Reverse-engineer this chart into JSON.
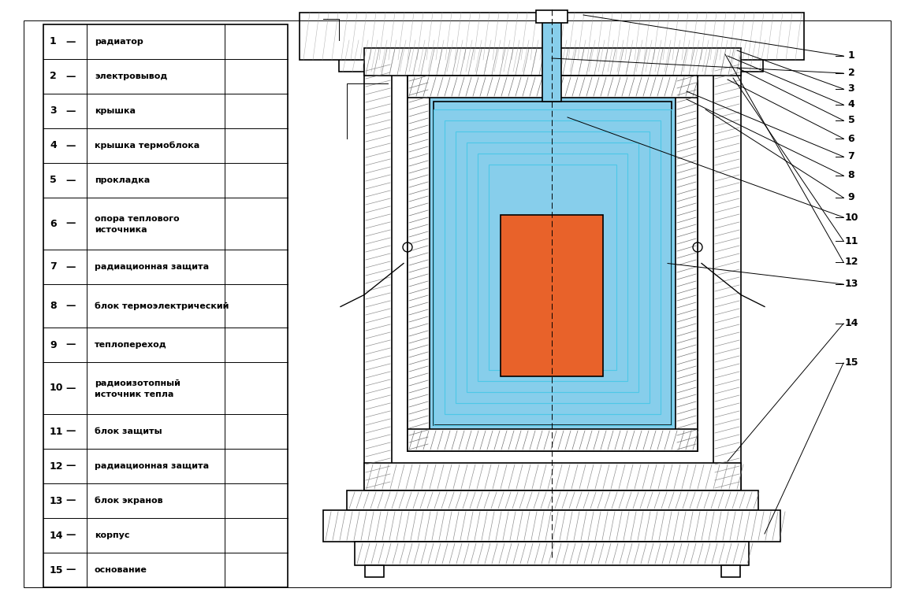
{
  "background_color": "#ffffff",
  "legend_items": [
    {
      "num": "1",
      "dash": "—",
      "text": "радиатор"
    },
    {
      "num": "2",
      "dash": "—",
      "text": "электровывод"
    },
    {
      "num": "3",
      "dash": "—",
      "text": "крышка"
    },
    {
      "num": "4",
      "dash": "—",
      "text": "крышка термоблока"
    },
    {
      "num": "5",
      "dash": "—",
      "text": "прокладка"
    },
    {
      "num": "6",
      "dash": "—",
      "text": "опора теплового\nисточника"
    },
    {
      "num": "7",
      "dash": "—",
      "text": "радиационная защита"
    },
    {
      "num": "8",
      "dash": "—",
      "text": "блок термоэлектрический"
    },
    {
      "num": "9",
      "dash": "—",
      "text": "теплопереход"
    },
    {
      "num": "10",
      "dash": "—",
      "text": "радиоизотопный\nисточник тепла"
    },
    {
      "num": "11",
      "dash": "—",
      "text": "блок защиты"
    },
    {
      "num": "12",
      "dash": "—",
      "text": "радиационная защита"
    },
    {
      "num": "13",
      "dash": "—",
      "text": "блок экранов"
    },
    {
      "num": "14",
      "dash": "—",
      "text": "корпус"
    },
    {
      "num": "15",
      "dash": "—",
      "text": "основание"
    }
  ],
  "cyan_color": "#87CEEB",
  "orange_color": "#E8622A",
  "hatch_color": "#555555",
  "line_color": "#000000",
  "line_width": 1.2,
  "thin_line": 0.7
}
